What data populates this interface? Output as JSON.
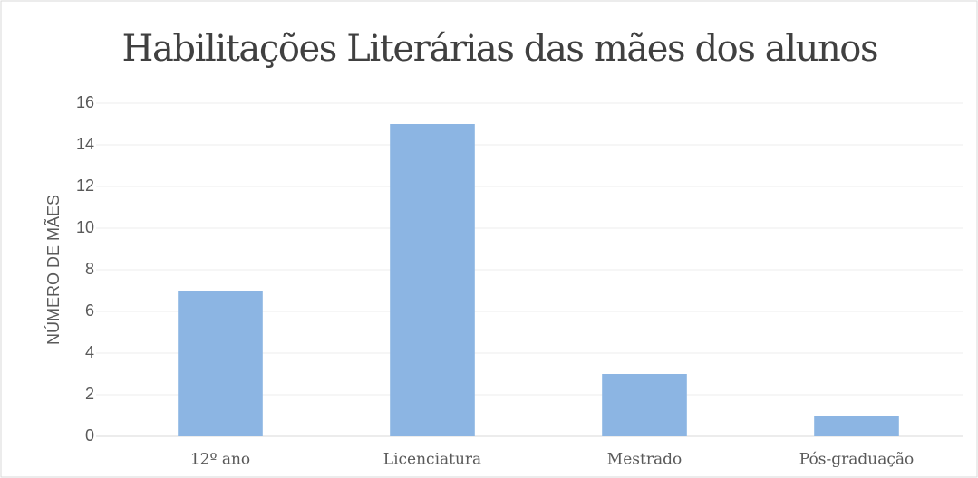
{
  "chart_data": {
    "type": "bar",
    "title": "Habilitações Literárias das mães dos alunos",
    "y_label": "NÚMERO DE MÃES",
    "categories": [
      "12º ano",
      "Licenciatura",
      "Mestrado",
      "Pós-graduação"
    ],
    "values": [
      7,
      15,
      3,
      1
    ],
    "color": "#8cb5e3",
    "ylim": [
      0,
      16
    ],
    "yticks": [
      0,
      2,
      4,
      6,
      8,
      10,
      12,
      14,
      16
    ],
    "grid": true
  }
}
